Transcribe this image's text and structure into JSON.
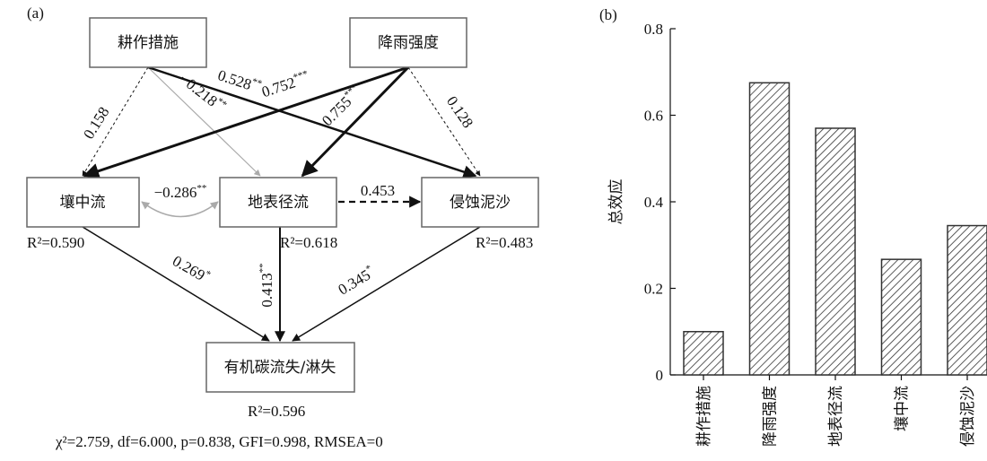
{
  "panel_a": {
    "label": "(a)",
    "nodes": [
      "耕作措施",
      "降雨强度",
      "壤中流",
      "地表径流",
      "侵蚀泥沙",
      "有机碳流失/淋失"
    ],
    "edges": [
      {
        "coef": "0.158",
        "sig": ""
      },
      {
        "coef": "−0.218",
        "sig": "**"
      },
      {
        "coef": "0.528",
        "sig": "**"
      },
      {
        "coef": "0.752",
        "sig": "***"
      },
      {
        "coef": "0.755",
        "sig": "***"
      },
      {
        "coef": "0.128",
        "sig": ""
      },
      {
        "coef": "−0.286",
        "sig": "**"
      },
      {
        "coef": "0.453",
        "sig": ""
      },
      {
        "coef": "0.269",
        "sig": "*"
      },
      {
        "coef": "0.413",
        "sig": "**"
      },
      {
        "coef": "0.345",
        "sig": "*"
      }
    ],
    "r2": [
      "R²=0.590",
      "R²=0.618",
      "R²=0.483",
      "R²=0.596"
    ],
    "fit": "χ²=2.759, df=6.000, p=0.838, GFI=0.998, RMSEA=0"
  },
  "chart_data": {
    "type": "bar",
    "panel_label": "(b)",
    "y_label": "总效应",
    "categories": [
      "耕作措施",
      "降雨强度",
      "地表径流",
      "壤中流",
      "侵蚀泥沙"
    ],
    "values": [
      0.1,
      0.675,
      0.57,
      0.267,
      0.345
    ],
    "color": "#333333",
    "ylim": [
      0,
      0.8
    ],
    "yticks": [
      0,
      0.2,
      0.4,
      0.6,
      0.8
    ]
  }
}
